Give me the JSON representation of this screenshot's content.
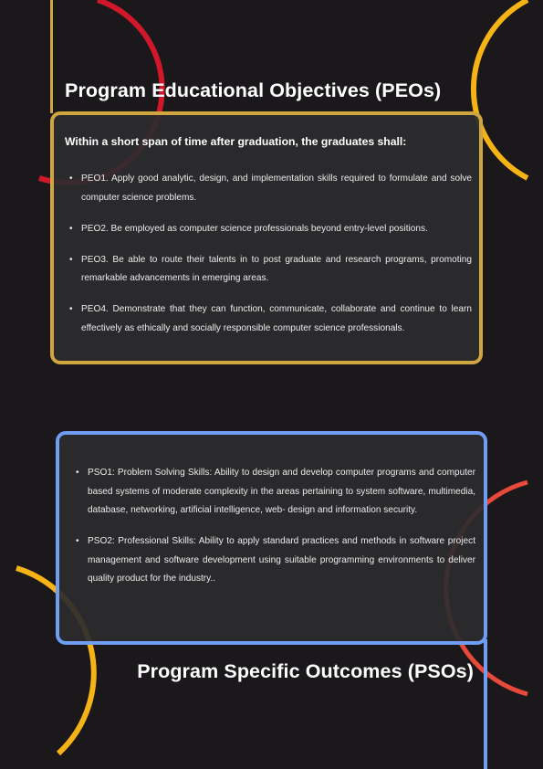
{
  "colors": {
    "background": "#1a181b",
    "card": "#2c2c2e",
    "peo_accent": "#cfa63f",
    "pso_accent": "#6f9df2",
    "red_arc": "#d0182a",
    "yellow_arc": "#f5b316",
    "orange_arc": "#e8493a"
  },
  "peo": {
    "title": "Program Educational Objectives (PEOs)",
    "intro": "Within a short span of time after graduation, the graduates shall:",
    "items": [
      "PEO1. Apply good analytic, design, and implementation skills required to formulate and solve computer science problems.",
      "PEO2. Be employed as computer science professionals beyond entry-level positions.",
      "PEO3. Be able to route their talents in to post graduate and research programs, promoting remarkable advancements in emerging areas.",
      "PEO4. Demonstrate that they can function, communicate, collaborate and continue to learn effectively as ethically and socially responsible computer science professionals."
    ]
  },
  "pso": {
    "title": "Program Specific Outcomes (PSOs)",
    "items": [
      "PSO1: Problem Solving Skills: Ability to design and develop computer programs and computer based systems of moderate complexity in the areas pertaining to system software, multimedia, database, networking, artificial intelligence, web- design and information security.",
      "PSO2: Professional Skills: Ability to apply standard practices and methods in software project management and software development using suitable programming environments to deliver quality product for the industry.."
    ]
  }
}
